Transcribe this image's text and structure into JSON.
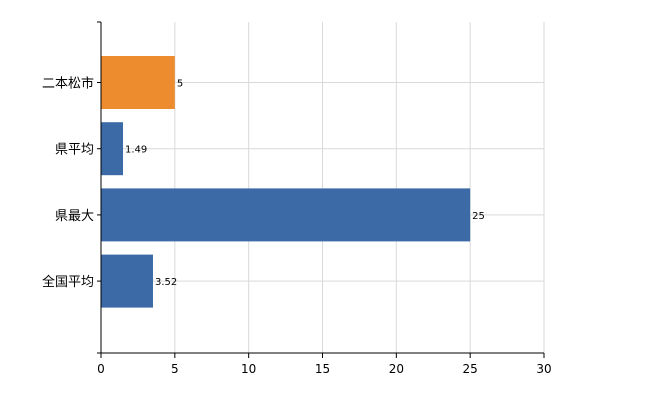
{
  "chart_data": {
    "type": "bar",
    "orientation": "horizontal",
    "categories": [
      "二本松市",
      "県平均",
      "県最大",
      "全国平均"
    ],
    "values": [
      5,
      1.49,
      25,
      3.52
    ],
    "data_labels": [
      "5",
      "1.49",
      "25",
      "3.52"
    ],
    "bar_colors": [
      "#ec8c2f",
      "#3b6aa6",
      "#3b6aa6",
      "#3b6aa6"
    ],
    "xlim": [
      0,
      30
    ],
    "x_ticks": [
      0,
      5,
      10,
      15,
      20,
      25,
      30
    ],
    "x_tick_labels": [
      "0",
      "5",
      "10",
      "15",
      "20",
      "25",
      "30"
    ],
    "grid": true,
    "title": "",
    "xlabel": "",
    "ylabel": ""
  }
}
